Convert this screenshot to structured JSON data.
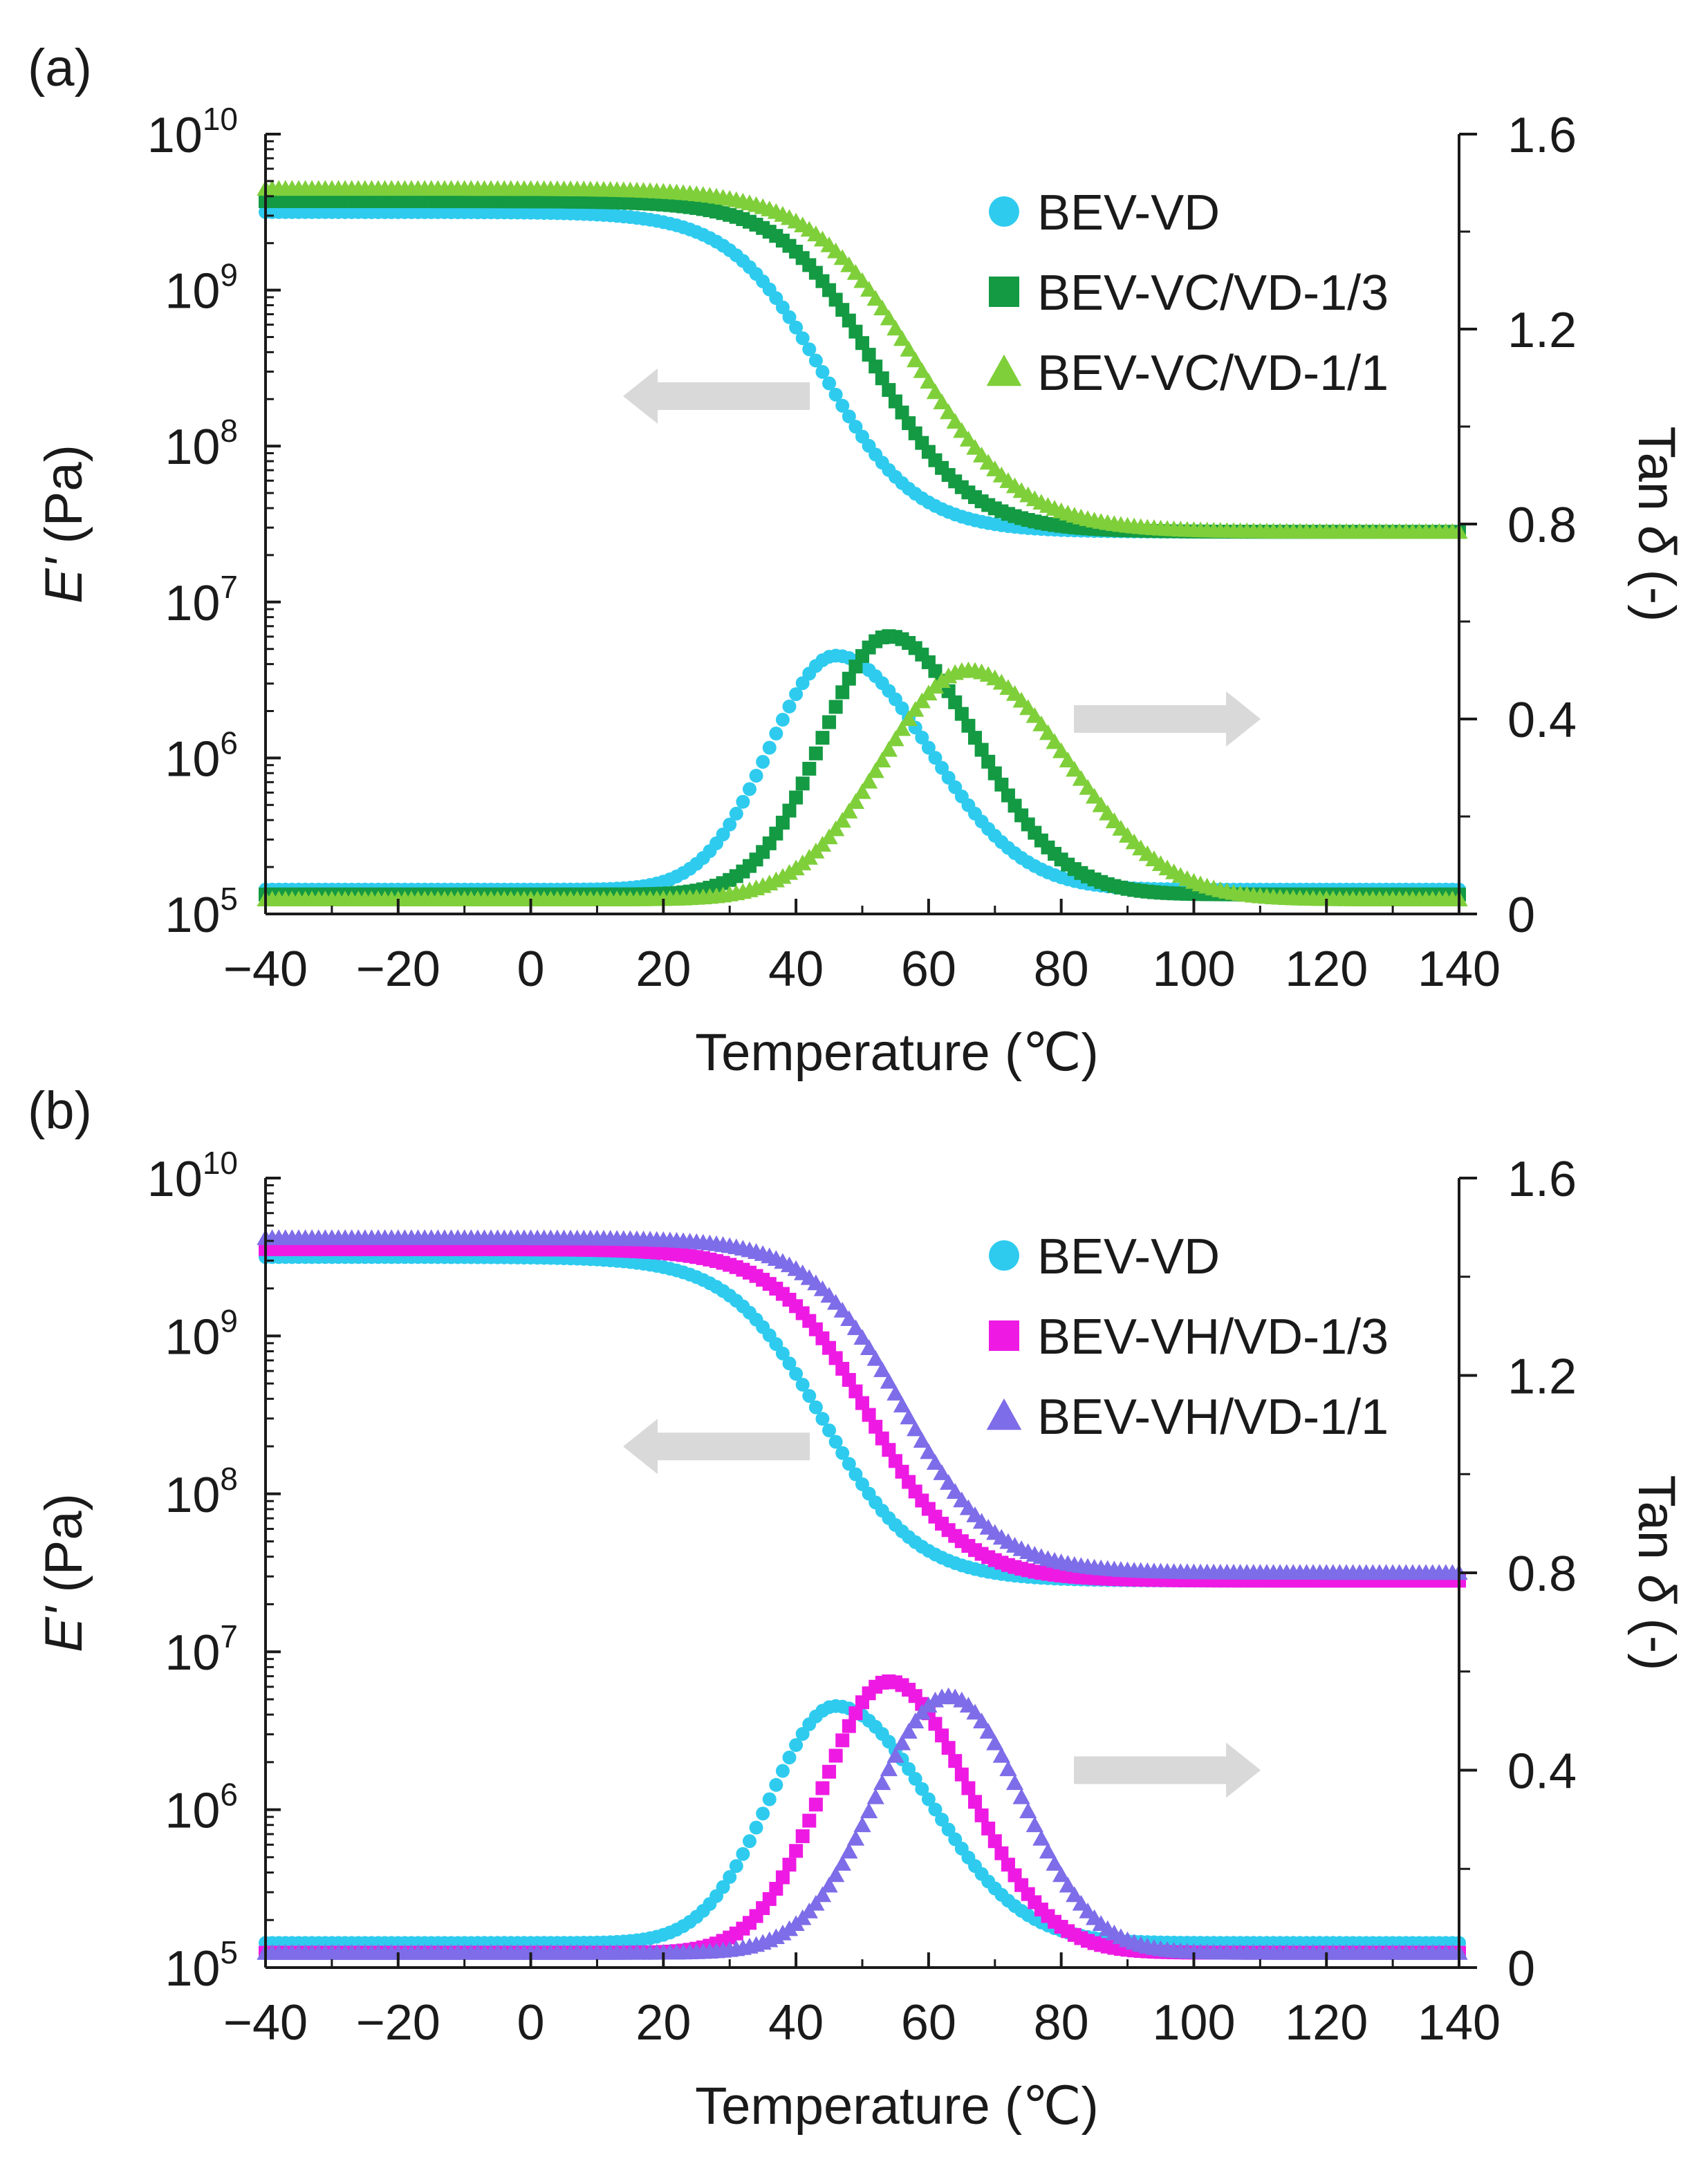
{
  "figure": {
    "colors": {
      "BEV-VD": "#2ecbef",
      "BEV-VC/VD-1/3": "#139a43",
      "BEV-VC/VD-1/1": "#7fcf3a",
      "BEV-VH/VD-1/3": "#ee1ae3",
      "BEV-VH/VD-1/1": "#7d6de8",
      "arrow": "#d9d9d9",
      "axis": "#1a1a1a"
    }
  },
  "chart_data": [
    {
      "panel_label": "(a)",
      "type": "scatter",
      "xlabel": "Temperature (℃)",
      "ylabel_left": {
        "symbol": "E'",
        "unit": " (Pa)"
      },
      "ylabel_right": {
        "prefix": "Tan ",
        "symbol": "δ",
        "unit": " (-)"
      },
      "xlim": [
        -40,
        140
      ],
      "ylim_left_log10": [
        5,
        10
      ],
      "ylim_right": [
        0,
        1.6
      ],
      "x_ticks": [
        {
          "value": -40,
          "label": "−40"
        },
        {
          "value": -20,
          "label": "−20"
        },
        {
          "value": 0,
          "label": "0"
        },
        {
          "value": 20,
          "label": "20"
        },
        {
          "value": 40,
          "label": "40"
        },
        {
          "value": 60,
          "label": "60"
        },
        {
          "value": 80,
          "label": "80"
        },
        {
          "value": 100,
          "label": "100"
        },
        {
          "value": 120,
          "label": "120"
        },
        {
          "value": 140,
          "label": "140"
        }
      ],
      "y_left_ticks": [
        {
          "exp": 5,
          "base": "10",
          "sup": "5"
        },
        {
          "exp": 6,
          "base": "10",
          "sup": "6"
        },
        {
          "exp": 7,
          "base": "10",
          "sup": "7"
        },
        {
          "exp": 8,
          "base": "10",
          "sup": "8"
        },
        {
          "exp": 9,
          "base": "10",
          "sup": "9"
        },
        {
          "exp": 10,
          "base": "10",
          "sup": "10"
        }
      ],
      "y_right_ticks": [
        {
          "value": 0,
          "label": "0"
        },
        {
          "value": 0.4,
          "label": "0.4"
        },
        {
          "value": 0.8,
          "label": "0.8"
        },
        {
          "value": 1.2,
          "label": "1.2"
        },
        {
          "value": 1.6,
          "label": "1.6"
        }
      ],
      "arrows": [
        {
          "direction": "left",
          "axis": "E'",
          "x": 28,
          "log10E": 8.32
        },
        {
          "direction": "right",
          "axis": "tan_delta",
          "x": 96,
          "tan_delta": 0.4
        }
      ],
      "legend_position": "top-right",
      "series": [
        {
          "name": "BEV-VD",
          "marker": "circle",
          "storage_modulus": {
            "log10_E_glassy": 9.5,
            "log10_E_rubbery": 7.45,
            "transition_center_C": 44,
            "transition_width_C": 7
          },
          "tan_delta": {
            "peak_C": 46,
            "peak_value": 0.53,
            "baseline": 0.05,
            "rise_width_C": 10,
            "fall_width_C": 14
          }
        },
        {
          "name": "BEV-VC/VD-1/3",
          "marker": "square",
          "storage_modulus": {
            "log10_E_glassy": 9.57,
            "log10_E_rubbery": 7.45,
            "transition_center_C": 52,
            "transition_width_C": 7
          },
          "tan_delta": {
            "peak_C": 54,
            "peak_value": 0.57,
            "baseline": 0.04,
            "rise_width_C": 10,
            "fall_width_C": 13
          }
        },
        {
          "name": "BEV-VC/VD-1/1",
          "marker": "triangle",
          "storage_modulus": {
            "log10_E_glassy": 9.65,
            "log10_E_rubbery": 7.45,
            "transition_center_C": 58,
            "transition_width_C": 8
          },
          "tan_delta": {
            "peak_C": 66,
            "peak_value": 0.5,
            "baseline": 0.03,
            "rise_width_C": 13,
            "fall_width_C": 15
          }
        }
      ]
    },
    {
      "panel_label": "(b)",
      "type": "scatter",
      "xlabel": "Temperature (℃)",
      "ylabel_left": {
        "symbol": "E'",
        "unit": " (Pa)"
      },
      "ylabel_right": {
        "prefix": "Tan ",
        "symbol": "δ",
        "unit": " (-)"
      },
      "xlim": [
        -40,
        140
      ],
      "ylim_left_log10": [
        5,
        10
      ],
      "ylim_right": [
        0,
        1.6
      ],
      "x_ticks": [
        {
          "value": -40,
          "label": "−40"
        },
        {
          "value": -20,
          "label": "−20"
        },
        {
          "value": 0,
          "label": "0"
        },
        {
          "value": 20,
          "label": "20"
        },
        {
          "value": 40,
          "label": "40"
        },
        {
          "value": 60,
          "label": "60"
        },
        {
          "value": 80,
          "label": "80"
        },
        {
          "value": 100,
          "label": "100"
        },
        {
          "value": 120,
          "label": "120"
        },
        {
          "value": 140,
          "label": "140"
        }
      ],
      "y_left_ticks": [
        {
          "exp": 5,
          "base": "10",
          "sup": "5"
        },
        {
          "exp": 6,
          "base": "10",
          "sup": "6"
        },
        {
          "exp": 7,
          "base": "10",
          "sup": "7"
        },
        {
          "exp": 8,
          "base": "10",
          "sup": "8"
        },
        {
          "exp": 9,
          "base": "10",
          "sup": "9"
        },
        {
          "exp": 10,
          "base": "10",
          "sup": "10"
        }
      ],
      "y_right_ticks": [
        {
          "value": 0,
          "label": "0"
        },
        {
          "value": 0.4,
          "label": "0.4"
        },
        {
          "value": 0.8,
          "label": "0.8"
        },
        {
          "value": 1.2,
          "label": "1.2"
        },
        {
          "value": 1.6,
          "label": "1.6"
        }
      ],
      "arrows": [
        {
          "direction": "left",
          "axis": "E'",
          "x": 28,
          "log10E": 8.3
        },
        {
          "direction": "right",
          "axis": "tan_delta",
          "x": 96,
          "tan_delta": 0.4
        }
      ],
      "legend_position": "top-right",
      "series": [
        {
          "name": "BEV-VD",
          "marker": "circle",
          "storage_modulus": {
            "log10_E_glassy": 9.5,
            "log10_E_rubbery": 7.45,
            "transition_center_C": 44,
            "transition_width_C": 7
          },
          "tan_delta": {
            "peak_C": 46,
            "peak_value": 0.53,
            "baseline": 0.05,
            "rise_width_C": 10,
            "fall_width_C": 14
          }
        },
        {
          "name": "BEV-VH/VD-1/3",
          "marker": "square",
          "storage_modulus": {
            "log10_E_glassy": 9.55,
            "log10_E_rubbery": 7.45,
            "transition_center_C": 51,
            "transition_width_C": 7
          },
          "tan_delta": {
            "peak_C": 54,
            "peak_value": 0.58,
            "baseline": 0.03,
            "rise_width_C": 10,
            "fall_width_C": 12
          }
        },
        {
          "name": "BEV-VH/VD-1/1",
          "marker": "triangle",
          "storage_modulus": {
            "log10_E_glassy": 9.62,
            "log10_E_rubbery": 7.5,
            "transition_center_C": 56,
            "transition_width_C": 7
          },
          "tan_delta": {
            "peak_C": 63,
            "peak_value": 0.55,
            "baseline": 0.03,
            "rise_width_C": 11,
            "fall_width_C": 11
          }
        }
      ]
    }
  ]
}
